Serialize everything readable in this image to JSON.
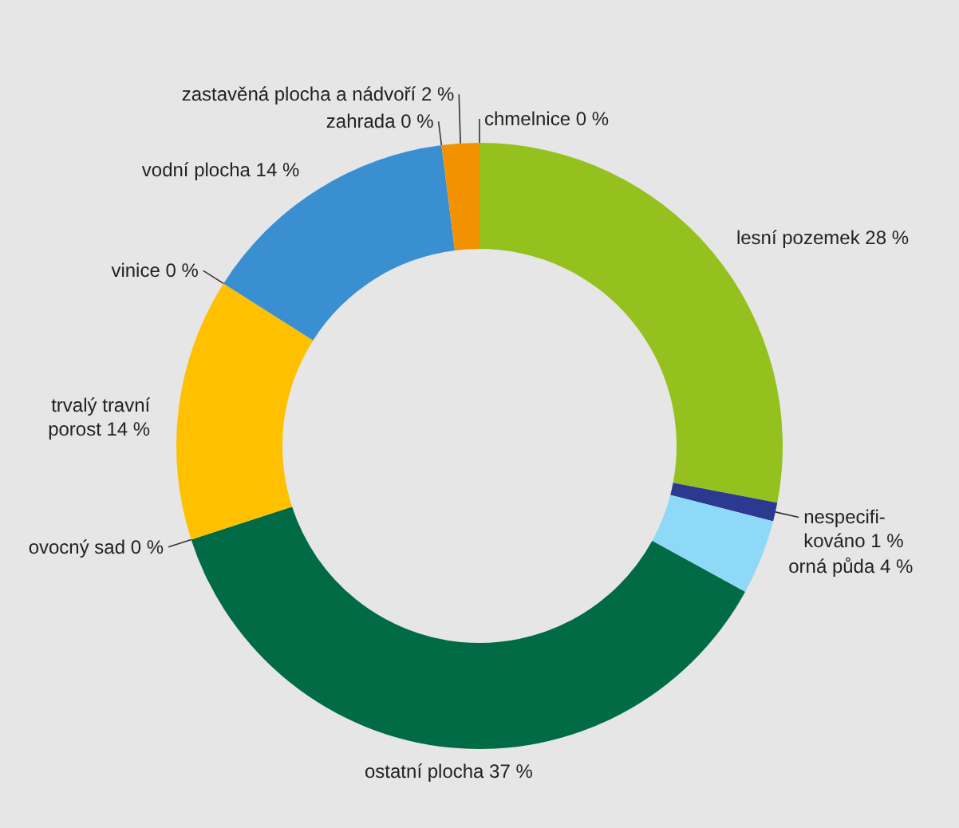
{
  "chart_data": {
    "type": "donut",
    "categories": [
      "lesní pozemek",
      "nespecifi-\nkováno",
      "orná půda",
      "ostatní plocha",
      "ovocný sad",
      "trvalý travní\nporost",
      "vinice",
      "vodní plocha",
      "zahrada",
      "zastavěná plocha a nádvoří",
      "chmelnice"
    ],
    "values": [
      28,
      1,
      4,
      37,
      0,
      14,
      0,
      14,
      0,
      2,
      0
    ],
    "value_labels": [
      "28 %",
      "1 %",
      "4 %",
      "37 %",
      "0 %",
      "14 %",
      "0 %",
      "14 %",
      "0 %",
      "2 %",
      "0 %"
    ],
    "colors": [
      "#95c11f",
      "#2b3990",
      "#8ed8f8",
      "#006b45",
      "#9fb8c8",
      "#ffc000",
      "#5a5a5a",
      "#3a8fd0",
      "#fff200",
      "#f39200",
      "#d9d9d9"
    ]
  }
}
